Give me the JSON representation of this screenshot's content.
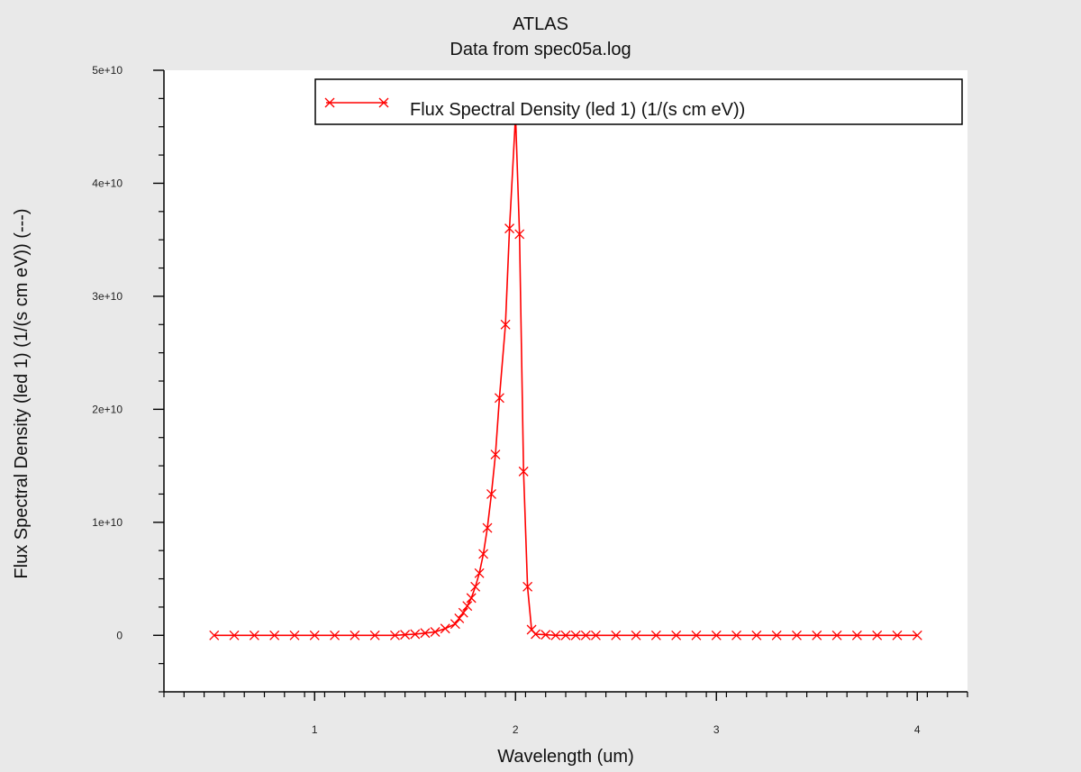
{
  "colors": {
    "background": "#e9e9e9",
    "plot_background": "#ffffff",
    "series": "#ff0000",
    "axis": "#000000"
  },
  "chart_data": {
    "type": "line",
    "title": "ATLAS",
    "subtitle": "Data from spec05a.log",
    "xlabel": "Wavelength (um)",
    "ylabel": "Flux Spectral Density (led 1) (1/(s cm eV)) (---)",
    "xlim": [
      0.25,
      4.25
    ],
    "ylim": [
      -5000000000.0,
      50000000000.0
    ],
    "x_ticks": [
      1,
      2,
      3,
      4
    ],
    "x_tick_labels": [
      "1",
      "2",
      "3",
      "4"
    ],
    "y_ticks": [
      0,
      10000000000.0,
      20000000000.0,
      30000000000.0,
      40000000000.0,
      50000000000.0
    ],
    "y_tick_labels": [
      "0",
      "1e+10",
      "2e+10",
      "3e+10",
      "4e+10",
      "5e+10"
    ],
    "marker": "x",
    "grid": false,
    "legend_position": "top",
    "series": [
      {
        "name": "Flux Spectral Density (led 1) (1/(s cm eV))",
        "x": [
          0.5,
          0.6,
          0.7,
          0.8,
          0.9,
          1.0,
          1.1,
          1.2,
          1.3,
          1.4,
          1.45,
          1.5,
          1.55,
          1.6,
          1.65,
          1.7,
          1.72,
          1.74,
          1.76,
          1.78,
          1.8,
          1.82,
          1.84,
          1.86,
          1.88,
          1.9,
          1.92,
          1.95,
          1.97,
          2.0,
          2.02,
          2.04,
          2.06,
          2.08,
          2.1,
          2.15,
          2.2,
          2.25,
          2.3,
          2.35,
          2.4,
          2.5,
          2.6,
          2.7,
          2.8,
          2.9,
          3.0,
          3.1,
          3.2,
          3.3,
          3.4,
          3.5,
          3.6,
          3.7,
          3.8,
          3.9,
          4.0
        ],
        "y": [
          0,
          0,
          0,
          0,
          0,
          0,
          0,
          0,
          0,
          0,
          50000000.0,
          100000000.0,
          200000000.0,
          300000000.0,
          600000000.0,
          1000000000.0,
          1500000000.0,
          2000000000.0,
          2600000000.0,
          3300000000.0,
          4300000000.0,
          5500000000.0,
          7200000000.0,
          9500000000.0,
          12500000000.0,
          16000000000.0,
          21000000000.0,
          27500000000.0,
          36000000000.0,
          46000000000.0,
          35500000000.0,
          14500000000.0,
          4300000000.0,
          500000000.0,
          100000000.0,
          50000000.0,
          0,
          0,
          0,
          0,
          0,
          0,
          0,
          0,
          0,
          0,
          0,
          0,
          0,
          0,
          0,
          0,
          0,
          0,
          0,
          0,
          0
        ]
      }
    ]
  }
}
